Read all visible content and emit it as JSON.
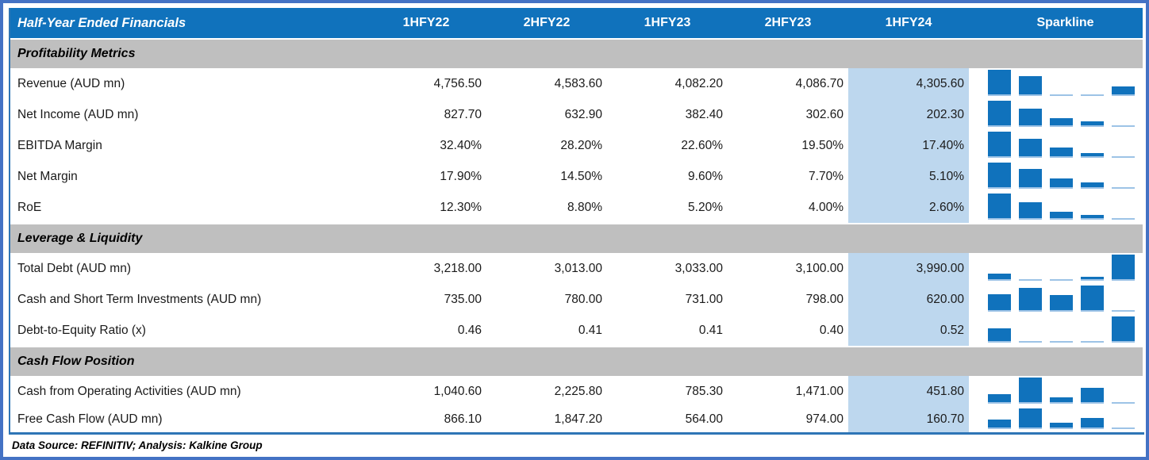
{
  "chart_data": {
    "type": "table",
    "title": "Half-Year Ended Financials",
    "columns": [
      "1HFY22",
      "2HFY22",
      "1HFY23",
      "2HFY23",
      "1HFY24"
    ],
    "sparkline_column": "Sparkline",
    "highlighted_column": "1HFY24",
    "sparkline_type": "bar",
    "sections": [
      {
        "label": "Profitability Metrics",
        "rows": [
          {
            "label": "Revenue (AUD mn)",
            "values": [
              "4,756.50",
              "4,583.60",
              "4,082.20",
              "4,086.70",
              "4,305.60"
            ]
          },
          {
            "label": "Net Income (AUD mn)",
            "values": [
              "827.70",
              "632.90",
              "382.40",
              "302.60",
              "202.30"
            ]
          },
          {
            "label": "EBITDA Margin",
            "values": [
              "32.40%",
              "28.20%",
              "22.60%",
              "19.50%",
              "17.40%"
            ]
          },
          {
            "label": "Net Margin",
            "values": [
              "17.90%",
              "14.50%",
              "9.60%",
              "7.70%",
              "5.10%"
            ]
          },
          {
            "label": "RoE",
            "values": [
              "12.30%",
              "8.80%",
              "5.20%",
              "4.00%",
              "2.60%"
            ]
          }
        ]
      },
      {
        "label": "Leverage & Liquidity",
        "rows": [
          {
            "label": "Total Debt (AUD mn)",
            "values": [
              "3,218.00",
              "3,013.00",
              "3,033.00",
              "3,100.00",
              "3,990.00"
            ]
          },
          {
            "label": "Cash and Short Term Investments (AUD mn)",
            "values": [
              "735.00",
              "780.00",
              "731.00",
              "798.00",
              "620.00"
            ]
          },
          {
            "label": "Debt-to-Equity Ratio (x)",
            "values": [
              "0.46",
              "0.41",
              "0.41",
              "0.40",
              "0.52"
            ]
          }
        ]
      },
      {
        "label": "Cash Flow Position",
        "rows": [
          {
            "label": "Cash from Operating Activities (AUD mn)",
            "values": [
              "1,040.60",
              "2,225.80",
              "785.30",
              "1,471.00",
              "451.80"
            ]
          },
          {
            "label": "Free Cash Flow (AUD mn)",
            "values": [
              "866.10",
              "1,847.20",
              "564.00",
              "974.00",
              "160.70"
            ]
          }
        ]
      }
    ],
    "footer": "Data Source: REFINITIV; Analysis: Kalkine Group"
  },
  "colors": {
    "header_background": "#1072BC",
    "header_text": "#FFFFFF",
    "section_band": "#BFBFBF",
    "highlight_column_fill": "#BDD7EE",
    "sparkline_bar": "#1072BC",
    "sparkline_min_bar": "#9DC3E6",
    "outer_frame": "#4472C4",
    "footer_rule": "#2E75B6",
    "body_text": "#1A1A1A"
  }
}
